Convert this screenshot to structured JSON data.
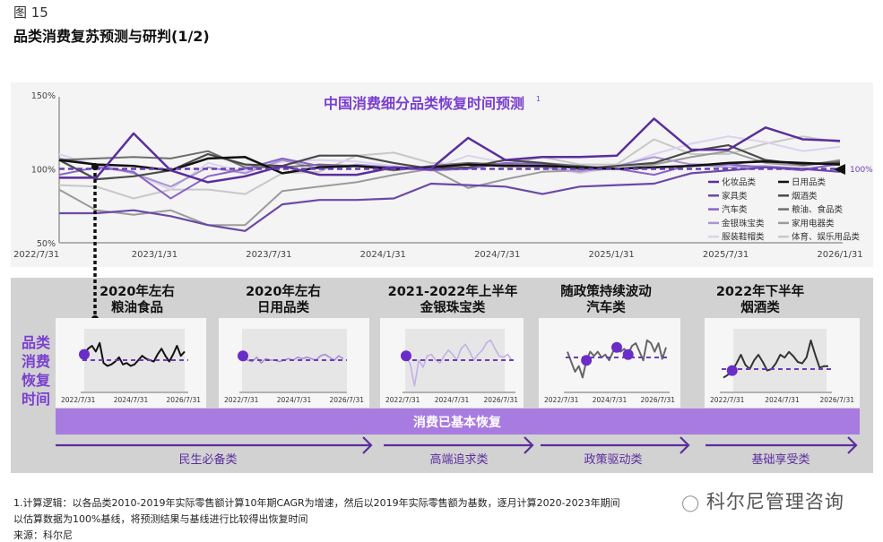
{
  "figure": {
    "number": "图 15",
    "title": "品类消费复苏预测与研判(1/2)"
  },
  "chart_data": [
    {
      "type": "line",
      "title": "中国消费细分品类恢复时间预测",
      "title_superscript": "1",
      "xlabel": "",
      "ylabel": "",
      "ylim": [
        50,
        150
      ],
      "y_ticks": [
        "150%",
        "100%",
        "50%"
      ],
      "x_ticks": [
        "2022/7/31",
        "2023/1/31",
        "2023/7/31",
        "2024/1/31",
        "2024/7/31",
        "2025/1/31",
        "2025/7/31",
        "2026/1/31"
      ],
      "baseline": {
        "value": 100,
        "label": "100%",
        "style": "dashed",
        "color": "#6a3fb5"
      },
      "legend_position": "lower-right",
      "x": [
        "2022/7",
        "2022/9",
        "2022/11",
        "2023/1",
        "2023/3",
        "2023/5",
        "2023/7",
        "2023/9",
        "2023/11",
        "2024/1",
        "2024/3",
        "2024/5",
        "2024/7",
        "2024/9",
        "2024/11",
        "2025/1",
        "2025/3",
        "2025/5",
        "2025/7",
        "2025/9",
        "2025/11",
        "2026/1"
      ],
      "series": [
        {
          "name": "化妆品类",
          "color": "#5b2d9e",
          "width": 2.5,
          "values": [
            94,
            94,
            124,
            99,
            91,
            95,
            102,
            96,
            96,
            101,
            100,
            121,
            106,
            108,
            108,
            109,
            134,
            113,
            113,
            128,
            120,
            119
          ]
        },
        {
          "name": "日用品类",
          "color": "#111111",
          "width": 2.5,
          "values": [
            106,
            103,
            102,
            99,
            107,
            108,
            97,
            101,
            102,
            100,
            101,
            103,
            102,
            102,
            101,
            100,
            101,
            102,
            104,
            105,
            104,
            103
          ]
        },
        {
          "name": "家具类",
          "color": "#6b48a8",
          "width": 2.2,
          "values": [
            70,
            70,
            72,
            68,
            62,
            58,
            76,
            79,
            79,
            80,
            90,
            89,
            88,
            83,
            88,
            89,
            90,
            97,
            99,
            101,
            100,
            98
          ]
        },
        {
          "name": "烟酒类",
          "color": "#4a4a4a",
          "width": 2.2,
          "values": [
            106,
            93,
            95,
            99,
            110,
            103,
            102,
            109,
            109,
            104,
            100,
            101,
            106,
            104,
            100,
            102,
            104,
            112,
            116,
            106,
            103,
            104
          ]
        },
        {
          "name": "汽车类",
          "color": "#8a63c8",
          "width": 2,
          "values": [
            96,
            101,
            98,
            80,
            95,
            100,
            107,
            102,
            102,
            101,
            99,
            100,
            104,
            103,
            100,
            100,
            96,
            103,
            103,
            101,
            99,
            104
          ]
        },
        {
          "name": "粮油、食品类",
          "color": "#6e6e6e",
          "width": 2,
          "values": [
            106,
            107,
            108,
            107,
            112,
            101,
            101,
            103,
            102,
            99,
            102,
            104,
            103,
            104,
            102,
            100,
            101,
            102,
            103,
            106,
            103,
            105
          ]
        },
        {
          "name": "金银珠宝类",
          "color": "#a995cf",
          "width": 2,
          "values": [
            107,
            103,
            97,
            88,
            101,
            97,
            106,
            100,
            103,
            101,
            100,
            104,
            103,
            101,
            98,
            102,
            108,
            103,
            101,
            102,
            100,
            103
          ]
        },
        {
          "name": "家用电器类",
          "color": "#9b9b9b",
          "width": 2,
          "values": [
            86,
            72,
            69,
            72,
            62,
            62,
            85,
            88,
            91,
            96,
            100,
            87,
            93,
            98,
            99,
            100,
            103,
            108,
            112,
            104,
            102,
            106
          ]
        },
        {
          "name": "服装鞋帽类",
          "color": "#dcd2ef",
          "width": 2,
          "values": [
            110,
            102,
            97,
            86,
            104,
            98,
            105,
            106,
            105,
            102,
            100,
            109,
            104,
            101,
            97,
            101,
            110,
            117,
            122,
            118,
            112,
            115
          ]
        },
        {
          "name": "体育、娱乐用品类",
          "color": "#c8c8c8",
          "width": 2,
          "values": [
            89,
            88,
            80,
            86,
            86,
            83,
            97,
            98,
            109,
            111,
            104,
            103,
            103,
            108,
            103,
            103,
            120,
            110,
            110,
            117,
            122,
            118
          ]
        }
      ]
    },
    {
      "type": "line",
      "panel": "mini-1",
      "x_ticks": [
        "2022/7/31",
        "2024/7/31",
        "2026/7/31"
      ],
      "series": [
        {
          "name": "粮油食品",
          "color": "#111111",
          "values": [
            104,
            108,
            110,
            106,
            112,
            98,
            96,
            97,
            99,
            102,
            97,
            98,
            96,
            97,
            100,
            103,
            101,
            100,
            99,
            104,
            108,
            103,
            99,
            104,
            110,
            103,
            106
          ]
        }
      ],
      "recovery_marker_index": 0
    },
    {
      "type": "line",
      "panel": "mini-2",
      "x_ticks": [
        "2022/7/31",
        "2024/7/31",
        "2026/7/31"
      ],
      "series": [
        {
          "name": "日用品类",
          "color": "#a98ad8",
          "values": [
            103,
            100,
            99,
            102,
            98,
            101,
            100,
            100,
            99,
            100,
            101,
            100,
            102,
            101,
            102,
            101,
            100,
            103,
            104,
            102,
            100,
            103,
            101
          ]
        }
      ],
      "recovery_marker_index": 0
    },
    {
      "type": "line",
      "panel": "mini-3",
      "x_ticks": [
        "2022/7/31",
        "2024/7/31",
        "2026/7/31"
      ],
      "series": [
        {
          "name": "金银珠宝类",
          "color": "#c4b0e6",
          "values": [
            103,
            97,
            82,
            100,
            95,
            103,
            104,
            100,
            98,
            103,
            107,
            104,
            100,
            108,
            111,
            106,
            100,
            104,
            107,
            112,
            114,
            108,
            103,
            102,
            104,
            100
          ]
        }
      ],
      "recovery_marker_index": 0
    },
    {
      "type": "line",
      "panel": "mini-4",
      "x_ticks": [
        "2022/7/31",
        "2024/7/31",
        "2026/7/31"
      ],
      "series": [
        {
          "name": "汽车类",
          "color": "#666666",
          "values": [
            104,
            97,
            90,
            94,
            86,
            98,
            104,
            101,
            104,
            100,
            102,
            98,
            104,
            107,
            104,
            106,
            102,
            108,
            110,
            104,
            98,
            112,
            110,
            104,
            110,
            99,
            107
          ]
        }
      ],
      "recovery_marker_indices": [
        5,
        13,
        16
      ]
    },
    {
      "type": "line",
      "panel": "mini-5",
      "x_ticks": [
        "2022/7/31",
        "2024/7/31",
        "2026/7/31"
      ],
      "series": [
        {
          "name": "烟酒类",
          "color": "#333333",
          "values": [
            94,
            96,
            99,
            104,
            110,
            103,
            100,
            106,
            110,
            105,
            99,
            100,
            104,
            110,
            108,
            112,
            109,
            105,
            104,
            108,
            120,
            110,
            101,
            102,
            102
          ]
        }
      ],
      "recovery_marker_index": 2
    }
  ],
  "timeline": {
    "side_label": [
      "品类",
      "消费",
      "恢复",
      "时间"
    ],
    "items": [
      {
        "period": "2020年左右",
        "category": "粮油食品"
      },
      {
        "period": "2020年左右",
        "category": "日用品类"
      },
      {
        "period": "2021-2022年上半年",
        "category": "金银珠宝类"
      },
      {
        "period": "随政策持续波动",
        "category": "汽车类"
      },
      {
        "period": "2022年下半年",
        "category": "烟酒类"
      }
    ],
    "recovered_bar": "消费已基本恢复",
    "groups": [
      "民生必备类",
      "高端追求类",
      "政策驱动类",
      "基础享受类"
    ]
  },
  "footnotes": {
    "line1": "1.计算逻辑：以各品类2010-2019年实际零售额计算10年期CAGR为增速，然后以2019年实际零售额为基数，逐月计算2020-2023年期间",
    "line2": "以估算数据为100%基线，将预测结果与基线进行比较得出恢复时间",
    "source": "来源：科尔尼"
  },
  "watermark": "科尔尼管理咨询",
  "colors": {
    "accent": "#7a3fd0",
    "bar": "#a87be0",
    "arrow": "#5b2d9e",
    "panel_gray": "#d2d2d2",
    "chart_bg": "#f4f4f4"
  }
}
